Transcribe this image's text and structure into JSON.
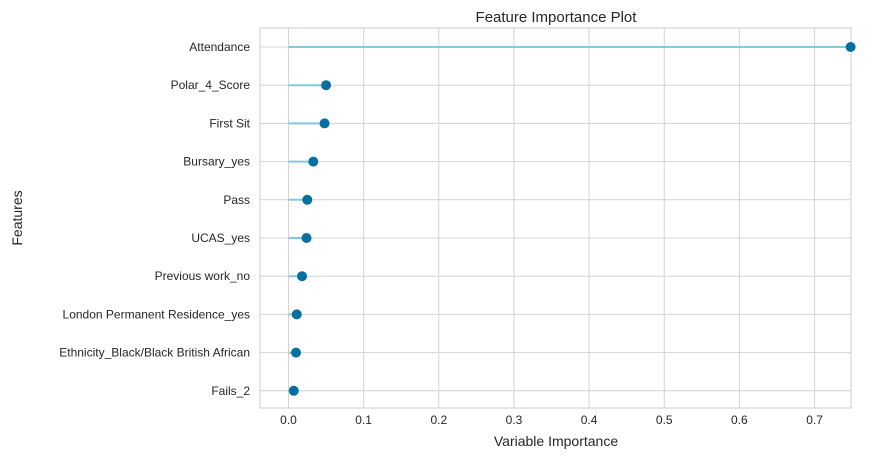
{
  "chart_data": {
    "type": "lollipop",
    "title": "Feature Importance Plot",
    "xlabel": "Variable Importance",
    "ylabel": "Features",
    "xlim": [
      -0.04,
      0.765
    ],
    "xticks": [
      "0.0",
      "0.1",
      "0.2",
      "0.3",
      "0.4",
      "0.5",
      "0.6",
      "0.7"
    ],
    "grid": true,
    "legend": "none",
    "categories": [
      "Attendance",
      "Polar_4_Score",
      "First Sit",
      "Bursary_yes",
      "Pass",
      "UCAS_yes",
      "Previous work_no",
      "London Permanent Residence_yes",
      "Ethnicity_Black/Black British African",
      "Fails_2"
    ],
    "values": [
      0.748,
      0.05,
      0.048,
      0.033,
      0.025,
      0.024,
      0.018,
      0.011,
      0.01,
      0.007
    ],
    "colors": {
      "stem": "#86c8e0",
      "marker": "#0570a0",
      "grid": "#d4d4d4",
      "frame": "#cccccc"
    }
  }
}
